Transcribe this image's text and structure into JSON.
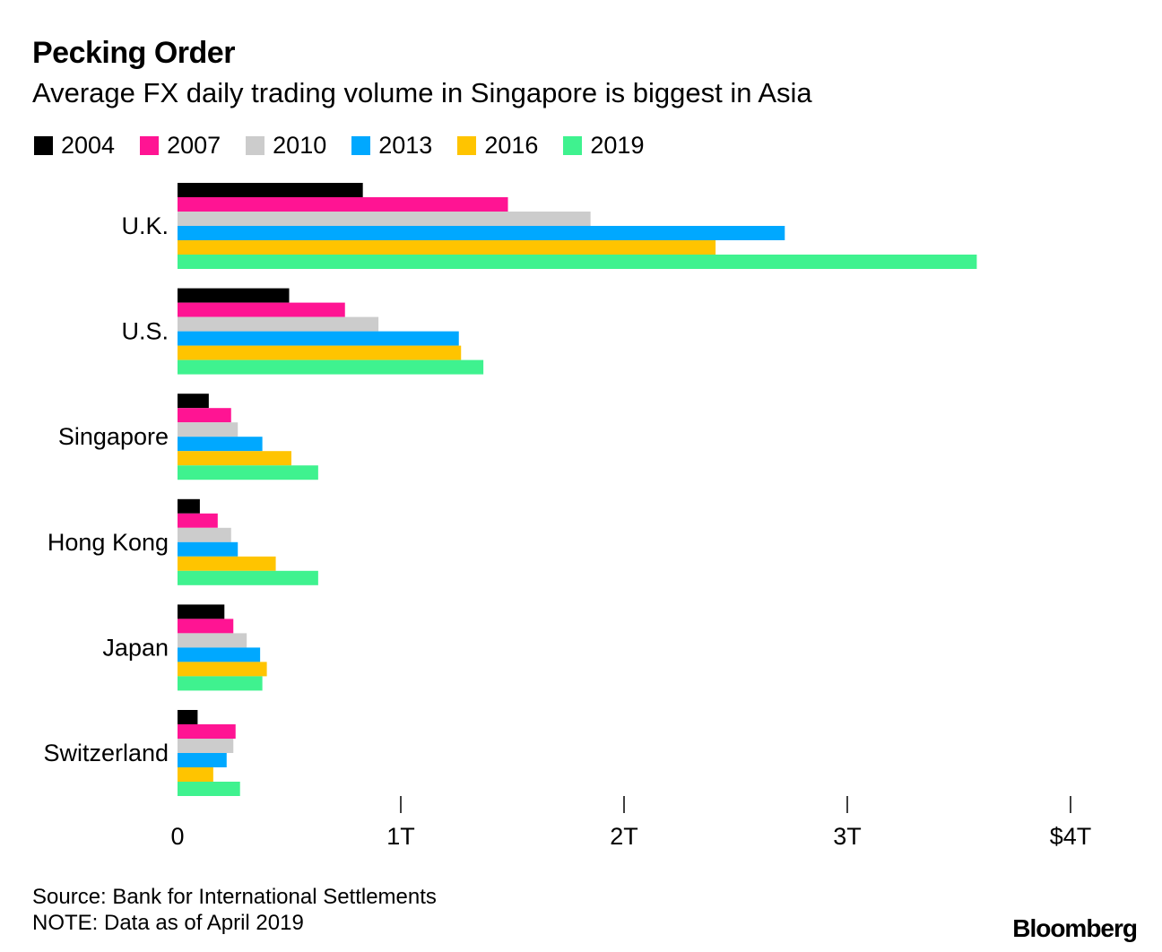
{
  "header": {
    "title": "Pecking Order",
    "subtitle": "Average FX daily trading volume in Singapore is biggest in Asia"
  },
  "footer": {
    "source": "Source: Bank for International Settlements",
    "note": "NOTE: Data as of April 2019",
    "logo": "Bloomberg"
  },
  "chart_data": {
    "type": "bar",
    "orientation": "horizontal",
    "title": "Pecking Order",
    "subtitle": "Average FX daily trading volume in Singapore is biggest in Asia",
    "xlabel": "",
    "ylabel": "",
    "xlim": [
      0,
      4
    ],
    "ticks": [
      0,
      1,
      2,
      3,
      4
    ],
    "tick_labels": [
      "0",
      "1T",
      "2T",
      "3T",
      "$4T"
    ],
    "grid": false,
    "legend_position": "top-left",
    "categories": [
      "U.K.",
      "U.S.",
      "Singapore",
      "Hong Kong",
      "Japan",
      "Switzerland"
    ],
    "series": [
      {
        "name": "2004",
        "color": "#000000",
        "values": [
          0.83,
          0.5,
          0.14,
          0.1,
          0.21,
          0.09
        ]
      },
      {
        "name": "2007",
        "color": "#ff1493",
        "values": [
          1.48,
          0.75,
          0.24,
          0.18,
          0.25,
          0.26
        ]
      },
      {
        "name": "2010",
        "color": "#cccccc",
        "values": [
          1.85,
          0.9,
          0.27,
          0.24,
          0.31,
          0.25
        ]
      },
      {
        "name": "2013",
        "color": "#00a8ff",
        "values": [
          2.72,
          1.26,
          0.38,
          0.27,
          0.37,
          0.22
        ]
      },
      {
        "name": "2016",
        "color": "#ffc400",
        "values": [
          2.41,
          1.27,
          0.51,
          0.44,
          0.4,
          0.16
        ]
      },
      {
        "name": "2019",
        "color": "#3ff28f",
        "values": [
          3.58,
          1.37,
          0.63,
          0.63,
          0.38,
          0.28
        ]
      }
    ]
  }
}
